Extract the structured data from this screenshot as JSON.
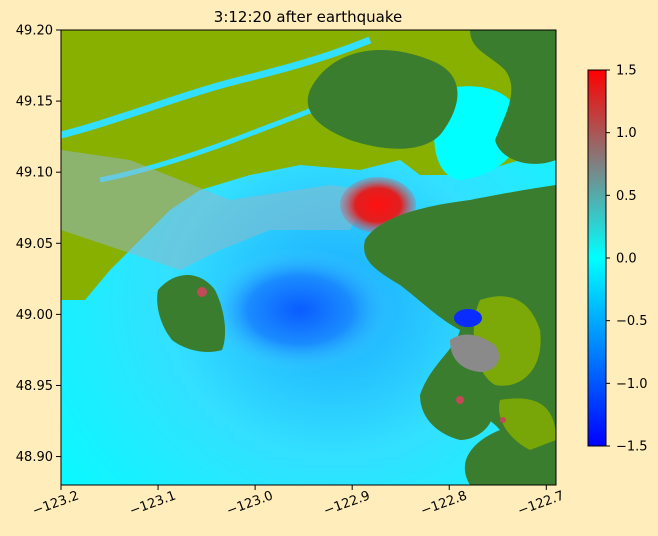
{
  "chart_data": {
    "type": "heatmap",
    "title": "3:12:20 after earthquake",
    "xlabel": "",
    "ylabel": "",
    "xlim": [
      -123.2,
      -122.69
    ],
    "ylim": [
      48.88,
      49.2
    ],
    "x_ticks": [
      -123.2,
      -123.1,
      -123.0,
      -122.9,
      -122.8,
      -122.7
    ],
    "x_tick_labels": [
      "−123.2",
      "−123.1",
      "−123.0",
      "−122.9",
      "−122.8",
      "−122.7"
    ],
    "y_ticks": [
      49.2,
      49.15,
      49.1,
      49.05,
      49.0,
      48.95,
      48.9
    ],
    "y_tick_labels": [
      "49.20",
      "49.15",
      "49.10",
      "49.05",
      "49.00",
      "48.95",
      "48.90"
    ],
    "colorbar": {
      "range": [
        -1.5,
        1.5
      ],
      "ticks": [
        1.5,
        1.0,
        0.5,
        0.0,
        -0.5,
        -1.0,
        -1.5
      ],
      "tick_labels": [
        "1.5",
        "1.0",
        "0.5",
        "0.0",
        "−0.5",
        "−1.0",
        "−1.5"
      ],
      "colors": [
        "#0000ff",
        "#0080ff",
        "#00ffff",
        "#808080",
        "#ff0000"
      ]
    },
    "land_colors": {
      "lowland": "#88b000",
      "highland": "#3a7d2f"
    },
    "grid": false,
    "legend": "none"
  }
}
